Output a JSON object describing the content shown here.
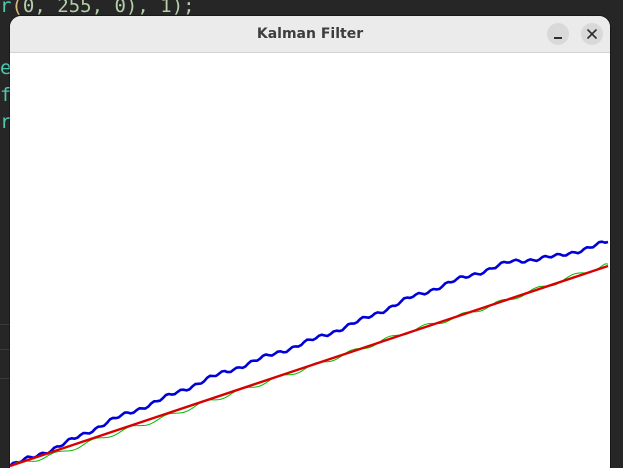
{
  "background_editor": {
    "top_line": {
      "r": "r",
      "open": "(",
      "n1": "0,",
      "n2": "255,",
      "n3": "0),",
      "n4": "1);"
    },
    "line_e": "e",
    "line_f": "f",
    "line_r": "r",
    "colors": {
      "bg": "#262626",
      "keyword": "#4ec9b0",
      "number": "#b5cea8"
    }
  },
  "window": {
    "title": "Kalman Filter",
    "buttons": {
      "minimize_icon": "minimize-icon",
      "close_icon": "close-icon"
    }
  },
  "plot": {
    "background": "#ffffff",
    "series": [
      {
        "color": "#0000d8",
        "x": [
          0,
          50,
          100,
          150,
          200,
          250,
          300,
          350,
          400,
          450,
          500,
          550,
          598
        ],
        "y": [
          0,
          20,
          45,
          66,
          88,
          107,
          125,
          145,
          168,
          187,
          204,
          210,
          224
        ]
      },
      {
        "color": "#00bb00",
        "x": [
          0,
          50,
          100,
          150,
          200,
          250,
          300,
          350,
          400,
          450,
          500,
          550,
          598
        ],
        "y": [
          0,
          13,
          31,
          47,
          65,
          82,
          99,
          117,
          135,
          150,
          167,
          185,
          202
        ]
      },
      {
        "color": "#d80000",
        "x": [
          0,
          598
        ],
        "y": [
          0,
          200
        ]
      }
    ]
  }
}
